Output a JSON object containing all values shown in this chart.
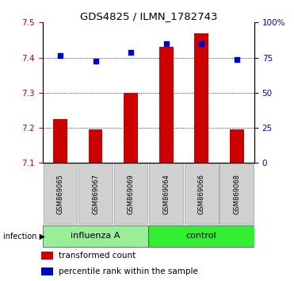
{
  "title": "GDS4825 / ILMN_1782743",
  "categories": [
    "GSM869065",
    "GSM869067",
    "GSM869069",
    "GSM869064",
    "GSM869066",
    "GSM869068"
  ],
  "red_values": [
    7.225,
    7.195,
    7.3,
    7.43,
    7.47,
    7.195
  ],
  "blue_values": [
    7.405,
    7.39,
    7.415,
    7.44,
    7.44,
    7.395
  ],
  "ylim": [
    7.1,
    7.5
  ],
  "yticks_left": [
    7.1,
    7.2,
    7.3,
    7.4,
    7.5
  ],
  "yticks_right": [
    0,
    25,
    50,
    75,
    100
  ],
  "ytick_labels_right": [
    "0",
    "25",
    "50",
    "75",
    "100%"
  ],
  "bar_width": 0.4,
  "red_color": "#cc0000",
  "blue_color": "#0000cc",
  "bar_bottom": 7.1,
  "groups": [
    {
      "label": "influenza A",
      "indices": [
        0,
        1,
        2
      ],
      "color": "#99ee99"
    },
    {
      "label": "control",
      "indices": [
        3,
        4,
        5
      ],
      "color": "#33ee33"
    }
  ],
  "group_label": "infection",
  "legend_red": "transformed count",
  "legend_blue": "percentile rank within the sample",
  "background_color": "#ffffff",
  "plot_bg_color": "#ffffff",
  "tick_color_left": "#cc0000",
  "tick_color_right": "#0000cc"
}
